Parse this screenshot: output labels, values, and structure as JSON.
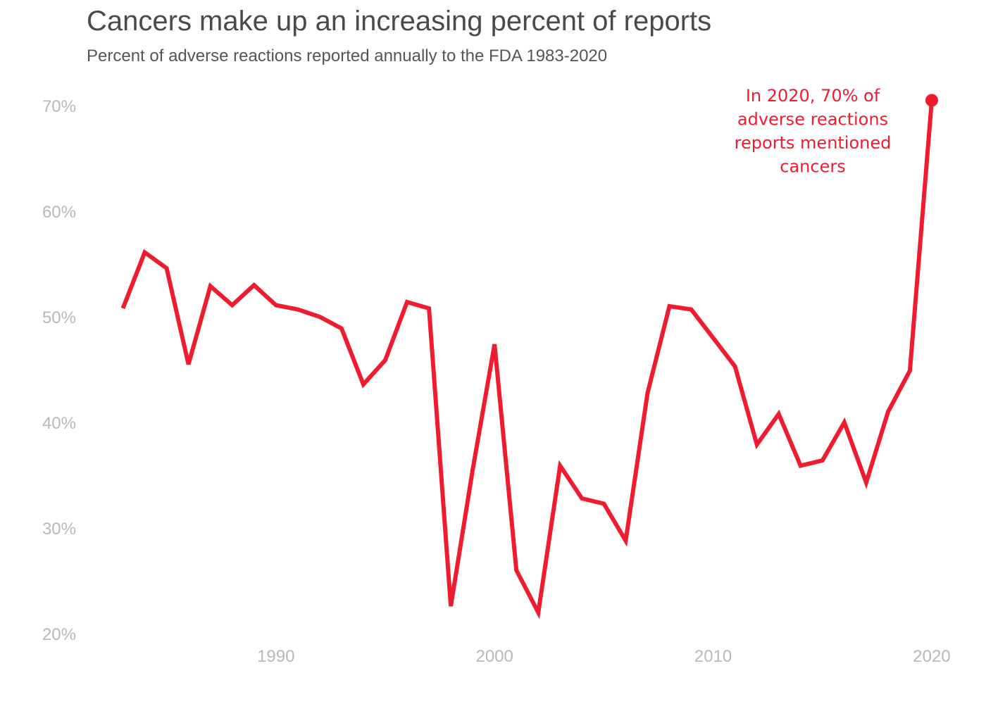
{
  "title": "Cancers make up an increasing percent of reports",
  "subtitle": "Percent of adverse reactions reported annually to the FDA 1983-2020",
  "colors": {
    "line": "#ee1c2e",
    "title": "#4a4a4a",
    "subtitle": "#555555",
    "ticks": "#b8b8b8"
  },
  "chart_data": {
    "type": "line",
    "title": "Cancers make up an increasing percent of reports",
    "subtitle": "Percent of adverse reactions reported annually to the FDA 1983-2020",
    "xlabel": "",
    "ylabel": "",
    "xlim": [
      1981,
      2021
    ],
    "ylim": [
      20,
      72
    ],
    "grid": false,
    "x_ticks": [
      1990,
      2000,
      2010,
      2020
    ],
    "x_tick_labels": [
      "1990",
      "2000",
      "2010",
      "2020"
    ],
    "y_ticks": [
      20,
      30,
      40,
      50,
      60,
      70
    ],
    "y_tick_labels": [
      "20%",
      "30%",
      "40%",
      "50%",
      "60%",
      "70%"
    ],
    "series": [
      {
        "x": [
          1983,
          1984,
          1985,
          1986,
          1987,
          1988,
          1989,
          1990,
          1991,
          1992,
          1993,
          1994,
          1995,
          1996,
          1997,
          1998,
          1999,
          2000,
          2001,
          2002,
          2003,
          2004,
          2005,
          2006,
          2007,
          2008,
          2009,
          2010,
          2011,
          2012,
          2013,
          2014,
          2015,
          2016,
          2017,
          2018,
          2019,
          2020
        ],
        "values": [
          50.8,
          56.1,
          54.6,
          45.5,
          52.9,
          51.1,
          53.0,
          51.1,
          50.7,
          50.0,
          48.9,
          43.6,
          45.9,
          51.4,
          50.8,
          22.6,
          35.5,
          47.4,
          26.0,
          22.0,
          35.9,
          32.8,
          32.3,
          28.8,
          42.8,
          51.0,
          50.7,
          48.0,
          45.3,
          37.9,
          40.8,
          35.9,
          36.4,
          40.0,
          34.3,
          41.0,
          44.9,
          70.5
        ]
      }
    ],
    "highlight_point": {
      "x": 2020,
      "y": 70.5
    },
    "annotation": [
      "In 2020, 70% of",
      "adverse reactions",
      "reports mentioned",
      "cancers"
    ]
  }
}
